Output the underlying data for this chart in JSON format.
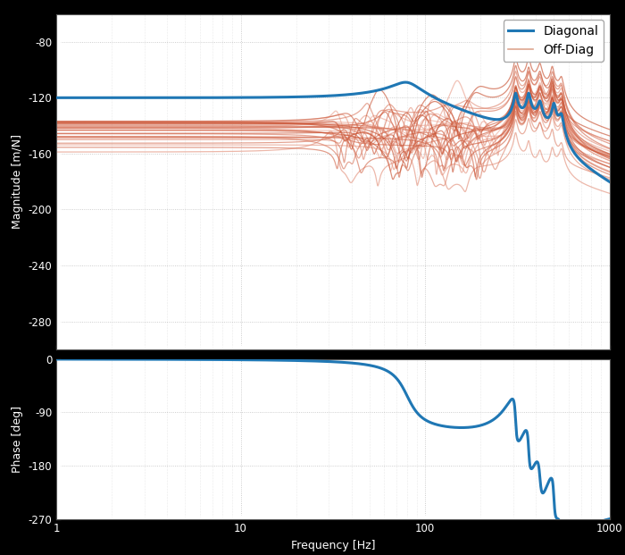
{
  "fig_width": 7.0,
  "fig_height": 6.21,
  "dpi": 100,
  "background_color": "#000000",
  "axes_background": "#ffffff",
  "grid_color": "#b0b0b0",
  "diag_color": "#1f77b4",
  "diag_linewidth": 2.2,
  "off_diag_alpha": 0.65,
  "off_diag_linewidth": 0.9,
  "mag_ylim": [
    -300,
    -60
  ],
  "phase_ylim": [
    -270,
    0
  ],
  "freq_min": 1,
  "freq_max": 1000,
  "legend_entries": [
    "Diagonal",
    "Off-Diag"
  ]
}
